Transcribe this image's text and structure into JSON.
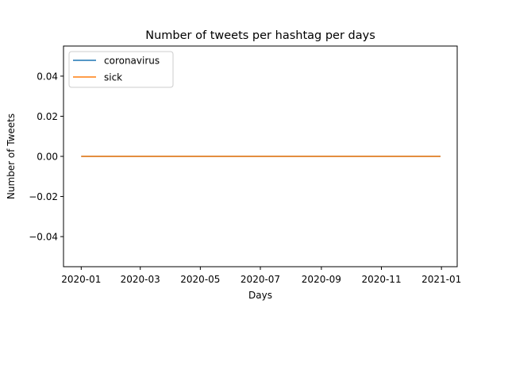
{
  "chart_data": {
    "type": "line",
    "title": "Number of tweets per hashtag per days",
    "xlabel": "Days",
    "ylabel": "Number of Tweets",
    "x_range": [
      "2020-01-01",
      "2020-12-31"
    ],
    "xlim": [
      "2019-12-14",
      "2021-01-17"
    ],
    "ylim": [
      -0.055,
      0.055
    ],
    "x_ticks": [
      "2020-01",
      "2020-03",
      "2020-05",
      "2020-07",
      "2020-09",
      "2020-11",
      "2021-01"
    ],
    "y_ticks": [
      0.04,
      0.02,
      0.0,
      -0.02,
      -0.04
    ],
    "y_tick_labels": [
      "0.04",
      "0.02",
      "0.00",
      "−0.02",
      "−0.04"
    ],
    "grid": false,
    "legend_position": "upper-left",
    "series": [
      {
        "name": "coronavirus",
        "color": "#1f77b4",
        "x": [
          "2020-01-01",
          "2020-12-31"
        ],
        "y": [
          0,
          0
        ]
      },
      {
        "name": "sick",
        "color": "#ff7f0e",
        "x": [
          "2020-01-01",
          "2020-12-31"
        ],
        "y": [
          0,
          0
        ]
      }
    ]
  }
}
